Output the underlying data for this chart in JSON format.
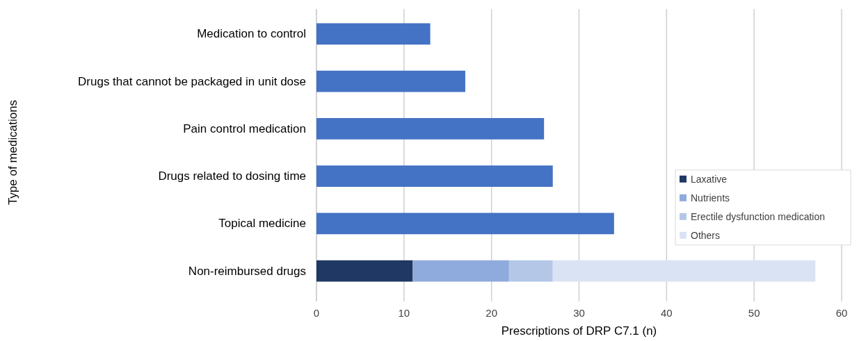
{
  "chart_data": {
    "type": "bar",
    "orientation": "horizontal",
    "stacked": true,
    "xlabel": "Prescriptions of  DRP C7.1  (n)",
    "ylabel": "Type of medications",
    "categories": [
      "Medication to control",
      "Drugs that cannot be packaged in unit dose",
      "Pain control medication",
      "Drugs related to dosing time",
      "Topical medicine",
      "Non-reimbursed drugs"
    ],
    "series": [
      {
        "color": "#4472c4",
        "values": [
          13,
          17,
          26,
          27,
          34,
          null
        ]
      },
      {
        "name": "Laxative",
        "color": "#1f3864",
        "values": [
          null,
          null,
          null,
          null,
          null,
          11
        ]
      },
      {
        "name": "Nutrients",
        "color": "#8faadc",
        "values": [
          null,
          null,
          null,
          null,
          null,
          11
        ]
      },
      {
        "name": "Erectile dysfunction medication",
        "color": "#b4c7e7",
        "values": [
          null,
          null,
          null,
          null,
          null,
          5
        ]
      },
      {
        "name": "Others",
        "color": "#dae3f3",
        "values": [
          null,
          null,
          null,
          null,
          null,
          30
        ]
      }
    ],
    "xlim": [
      0,
      60
    ],
    "xticks": [
      0,
      10,
      20,
      30,
      40,
      50,
      60
    ],
    "grid": "x",
    "legend": "bottom right"
  }
}
